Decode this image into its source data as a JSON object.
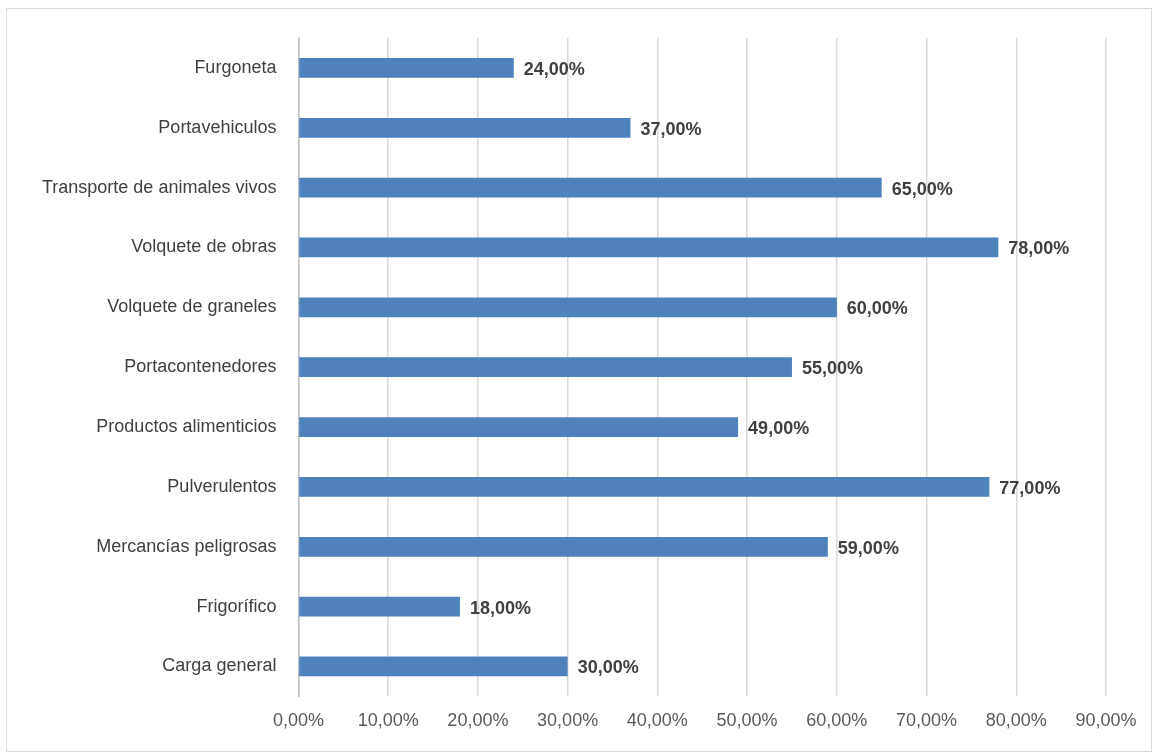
{
  "chart_data": {
    "type": "bar",
    "orientation": "horizontal",
    "categories": [
      "Furgoneta",
      "Portavehiculos",
      "Transporte de animales vivos",
      "Volquete de obras",
      "Volquete de graneles",
      "Portacontenedores",
      "Productos alimenticios",
      "Pulverulentos",
      "Mercancías peligrosas",
      "Frigorífico",
      "Carga general"
    ],
    "values": [
      24,
      37,
      65,
      78,
      60,
      55,
      49,
      77,
      59,
      18,
      30
    ],
    "value_labels": [
      "24,00%",
      "37,00%",
      "65,00%",
      "78,00%",
      "60,00%",
      "55,00%",
      "49,00%",
      "77,00%",
      "59,00%",
      "18,00%",
      "30,00%"
    ],
    "color": "#4f81bd",
    "xlim": [
      0,
      90
    ],
    "xticks": [
      {
        "value": 0,
        "label": "0,00%"
      },
      {
        "value": 10,
        "label": "10,00%"
      },
      {
        "value": 20,
        "label": "20,00%"
      },
      {
        "value": 30,
        "label": "30,00%"
      },
      {
        "value": 40,
        "label": "40,00%"
      },
      {
        "value": 50,
        "label": "50,00%"
      },
      {
        "value": 60,
        "label": "60,00%"
      },
      {
        "value": 70,
        "label": "70,00%"
      },
      {
        "value": 80,
        "label": "80,00%"
      },
      {
        "value": 90,
        "label": "90,00%"
      }
    ],
    "grid": "x",
    "legend": false
  }
}
